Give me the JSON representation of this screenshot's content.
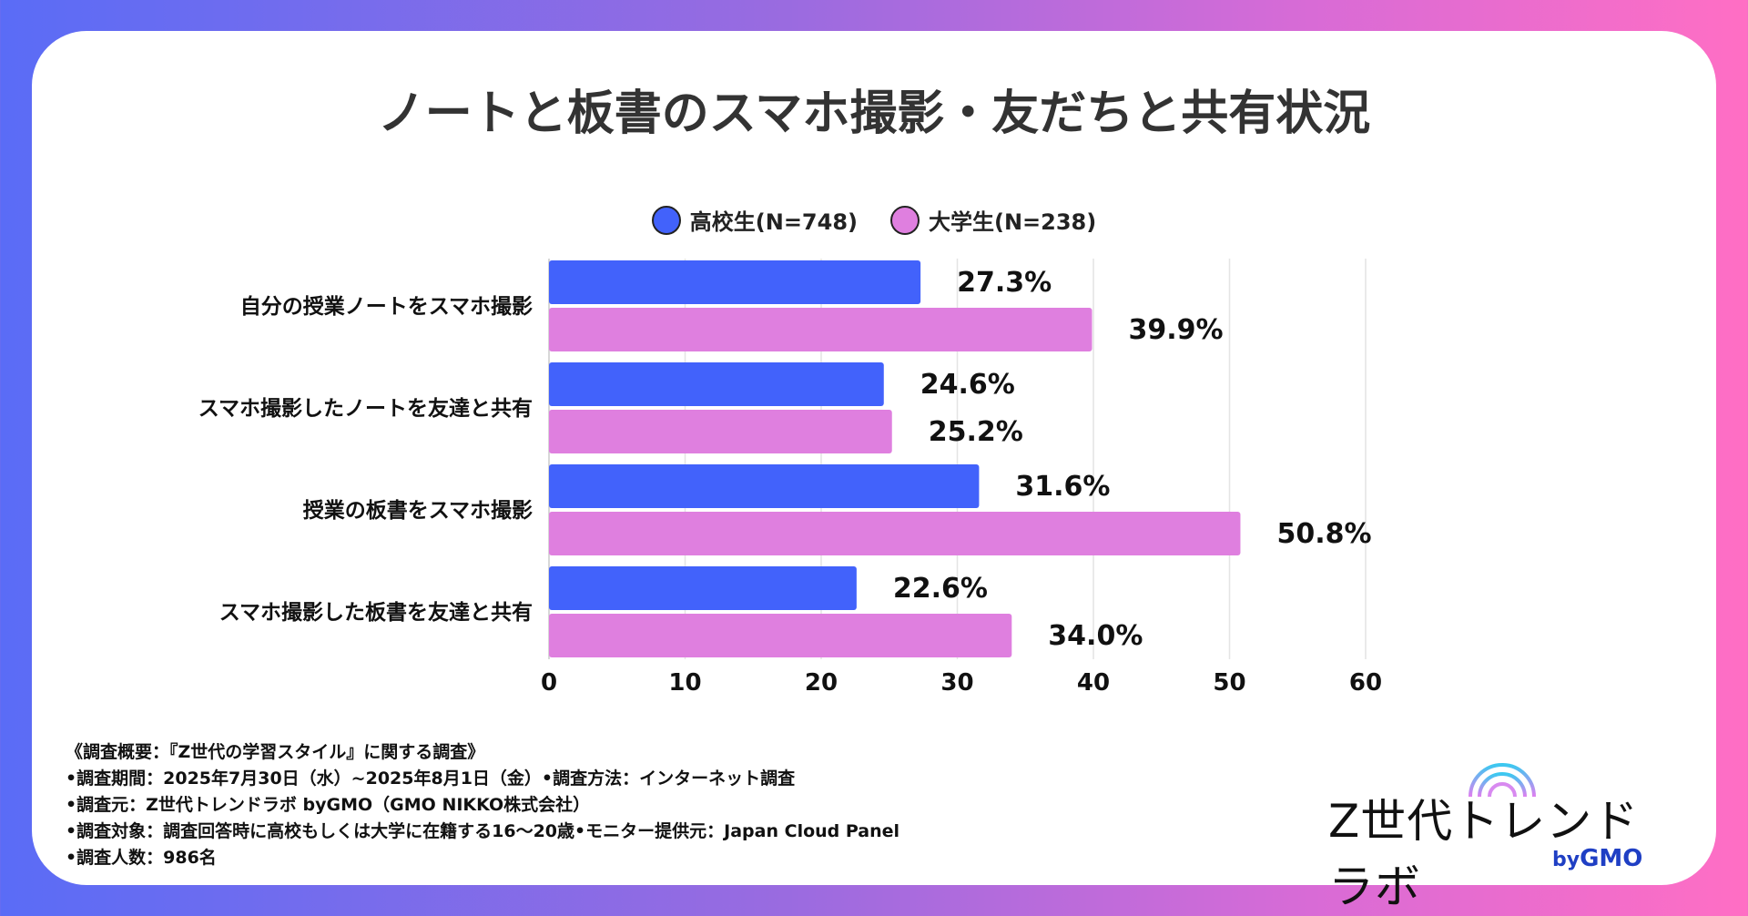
{
  "title": "ノートと板書のスマホ撮影・友だちと共有状況",
  "colors": {
    "high_school": "#4262fb",
    "university": "#df7fdf"
  },
  "chart_data": {
    "type": "bar",
    "orientation": "horizontal",
    "categories": [
      "自分の授業ノートをスマホ撮影",
      "スマホ撮影したノートを友達と共有",
      "授業の板書をスマホ撮影",
      "スマホ撮影した板書を友達と共有"
    ],
    "series": [
      {
        "name": "高校生(N=748)",
        "values": [
          27.3,
          24.6,
          31.6,
          22.6
        ],
        "labels": [
          "27.3%",
          "24.6%",
          "31.6%",
          "22.6%"
        ]
      },
      {
        "name": "大学生(N=238)",
        "values": [
          39.9,
          25.2,
          50.8,
          34.0
        ],
        "labels": [
          "39.9%",
          "25.2%",
          "50.8%",
          "34.0%"
        ]
      }
    ],
    "xlim": [
      0,
      60
    ],
    "xticks": [
      "0",
      "10",
      "20",
      "30",
      "40",
      "50",
      "60"
    ],
    "grid": true,
    "legend": "top"
  },
  "notes": [
    "《調査概要：『Z世代の学習スタイル』に関する調査》",
    "•調査期間：2025年7月30日（水）~2025年8月1日（金）•調査方法：インターネット調査",
    "•調査元：Z世代トレンドラボ byGMO（GMO NIKKO株式会社）",
    "•調査対象：調査回答時に高校もしくは大学に在籍する16～20歳•モニター提供元：Japan Cloud Panel",
    "•調査人数：986名"
  ],
  "logo": {
    "name": "Z世代トレンドラボ",
    "by": "by",
    "brand": "GMO"
  }
}
